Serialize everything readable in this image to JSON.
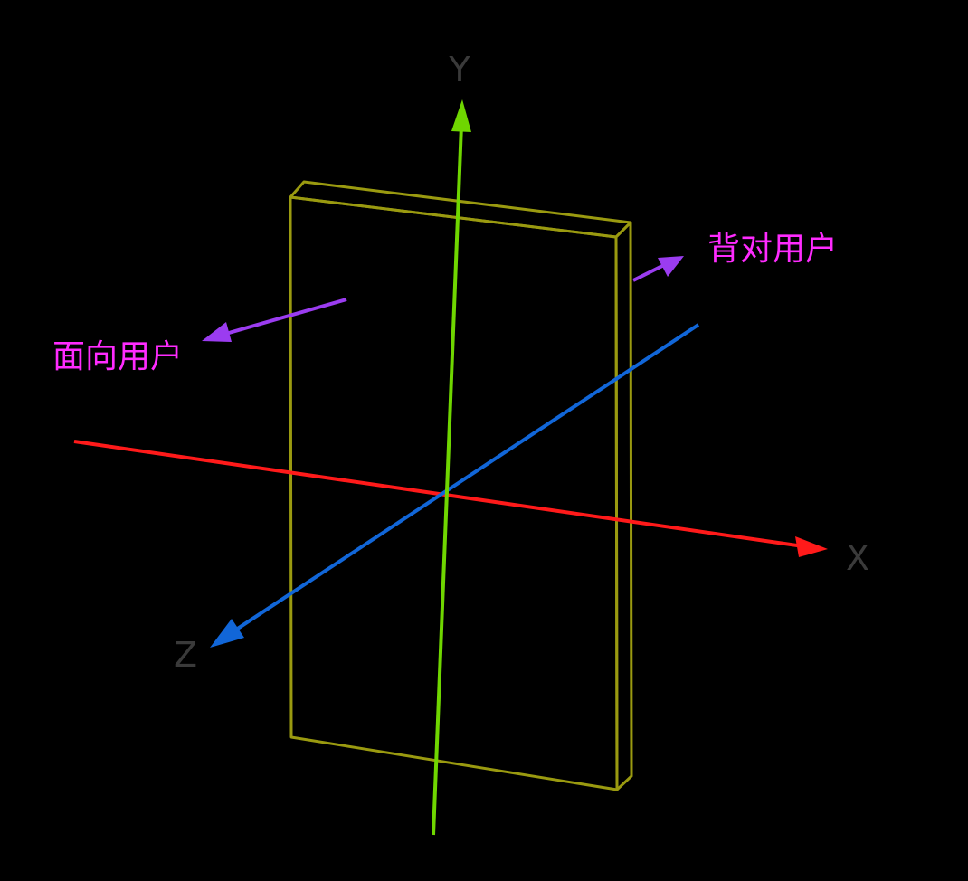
{
  "axes": {
    "x": {
      "label": "X",
      "color": "#ff1a1a"
    },
    "y": {
      "label": "Y",
      "color": "#6fd600"
    },
    "z": {
      "label": "Z",
      "color": "#1166d8"
    },
    "label_color": "#3a3a3a"
  },
  "panel": {
    "color": "#9a9a10"
  },
  "callouts": {
    "front": {
      "label": "面向用户"
    },
    "back": {
      "label": "背对用户"
    },
    "arrow_color": "#9b3cf0",
    "text_color": "#ff2bff"
  }
}
